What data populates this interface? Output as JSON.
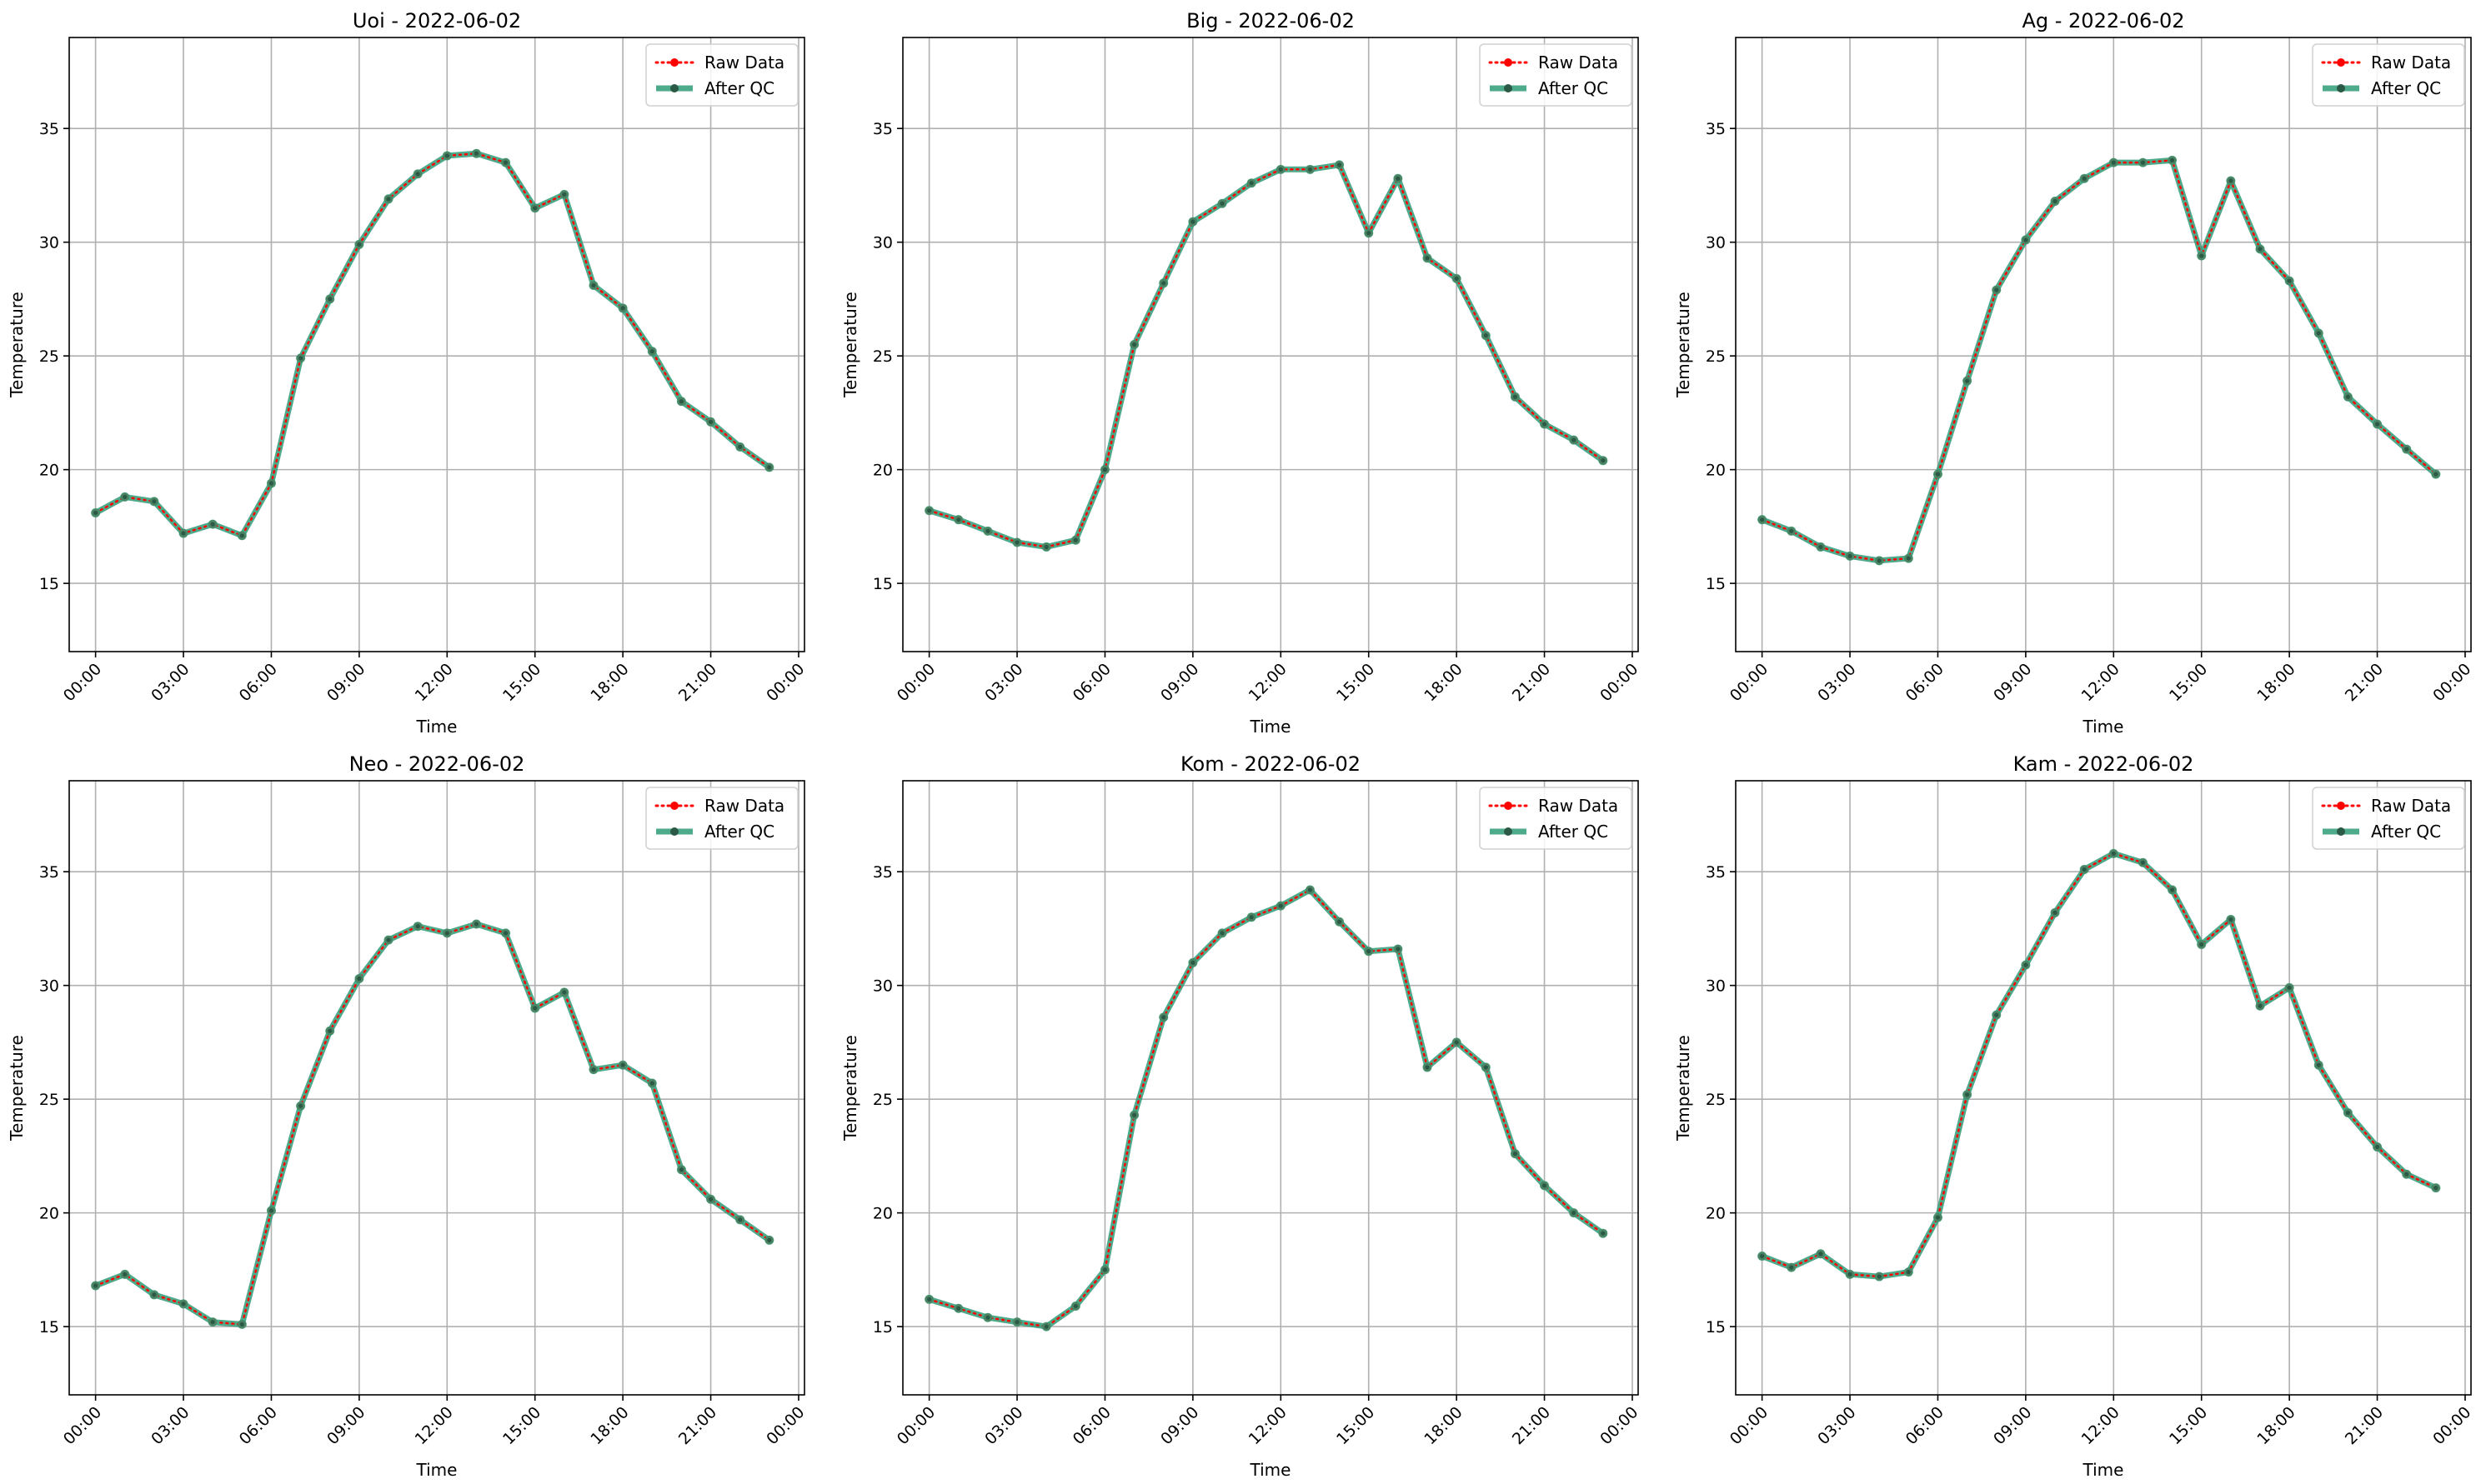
{
  "chart_data": [
    {
      "type": "line",
      "title": "Uoi - 2022-06-02",
      "xlabel": "Time",
      "ylabel": "Temperature",
      "x": [
        "00:00",
        "01:00",
        "02:00",
        "03:00",
        "04:00",
        "05:00",
        "06:00",
        "07:00",
        "08:00",
        "09:00",
        "10:00",
        "11:00",
        "12:00",
        "13:00",
        "14:00",
        "15:00",
        "16:00",
        "17:00",
        "18:00",
        "19:00",
        "20:00",
        "21:00",
        "22:00",
        "23:00"
      ],
      "xticks": [
        "00:00",
        "03:00",
        "06:00",
        "09:00",
        "12:00",
        "15:00",
        "18:00",
        "21:00",
        "00:00"
      ],
      "yticks": [
        15,
        20,
        25,
        30,
        35
      ],
      "ylim": [
        12,
        39
      ],
      "xlim_hours": [
        -0.9,
        24.2
      ],
      "grid": true,
      "legend_position": "upper right",
      "series": [
        {
          "name": "Raw Data",
          "color": "#ff0000",
          "style": "dotted",
          "values": [
            18.1,
            18.8,
            18.6,
            17.2,
            17.6,
            17.1,
            19.4,
            24.9,
            27.5,
            29.9,
            31.9,
            33.0,
            33.8,
            33.9,
            33.5,
            31.5,
            32.1,
            28.1,
            27.1,
            25.2,
            23.0,
            22.1,
            21.0,
            20.1
          ]
        },
        {
          "name": "After QC",
          "color": "#2e9b76",
          "style": "solid",
          "values": [
            18.1,
            18.8,
            18.6,
            17.2,
            17.6,
            17.1,
            19.4,
            24.9,
            27.5,
            29.9,
            31.9,
            33.0,
            33.8,
            33.9,
            33.5,
            31.5,
            32.1,
            28.1,
            27.1,
            25.2,
            23.0,
            22.1,
            21.0,
            20.1
          ]
        }
      ]
    },
    {
      "type": "line",
      "title": "Big - 2022-06-02",
      "xlabel": "Time",
      "ylabel": "Temperature",
      "x": [
        "00:00",
        "01:00",
        "02:00",
        "03:00",
        "04:00",
        "05:00",
        "06:00",
        "07:00",
        "08:00",
        "09:00",
        "10:00",
        "11:00",
        "12:00",
        "13:00",
        "14:00",
        "15:00",
        "16:00",
        "17:00",
        "18:00",
        "19:00",
        "20:00",
        "21:00",
        "22:00",
        "23:00"
      ],
      "xticks": [
        "00:00",
        "03:00",
        "06:00",
        "09:00",
        "12:00",
        "15:00",
        "18:00",
        "21:00",
        "00:00"
      ],
      "yticks": [
        15,
        20,
        25,
        30,
        35
      ],
      "ylim": [
        12,
        39
      ],
      "xlim_hours": [
        -0.9,
        24.2
      ],
      "grid": true,
      "legend_position": "upper right",
      "series": [
        {
          "name": "Raw Data",
          "color": "#ff0000",
          "style": "dotted",
          "values": [
            18.2,
            17.8,
            17.3,
            16.8,
            16.6,
            16.9,
            20.0,
            25.5,
            28.2,
            30.9,
            31.7,
            32.6,
            33.2,
            33.2,
            33.4,
            30.4,
            32.8,
            29.3,
            28.4,
            25.9,
            23.2,
            22.0,
            21.3,
            20.4
          ]
        },
        {
          "name": "After QC",
          "color": "#2e9b76",
          "style": "solid",
          "values": [
            18.2,
            17.8,
            17.3,
            16.8,
            16.6,
            16.9,
            20.0,
            25.5,
            28.2,
            30.9,
            31.7,
            32.6,
            33.2,
            33.2,
            33.4,
            30.4,
            32.8,
            29.3,
            28.4,
            25.9,
            23.2,
            22.0,
            21.3,
            20.4
          ]
        }
      ]
    },
    {
      "type": "line",
      "title": "Ag - 2022-06-02",
      "xlabel": "Time",
      "ylabel": "Temperature",
      "x": [
        "00:00",
        "01:00",
        "02:00",
        "03:00",
        "04:00",
        "05:00",
        "06:00",
        "07:00",
        "08:00",
        "09:00",
        "10:00",
        "11:00",
        "12:00",
        "13:00",
        "14:00",
        "15:00",
        "16:00",
        "17:00",
        "18:00",
        "19:00",
        "20:00",
        "21:00",
        "22:00",
        "23:00"
      ],
      "xticks": [
        "00:00",
        "03:00",
        "06:00",
        "09:00",
        "12:00",
        "15:00",
        "18:00",
        "21:00",
        "00:00"
      ],
      "yticks": [
        15,
        20,
        25,
        30,
        35
      ],
      "ylim": [
        12,
        39
      ],
      "xlim_hours": [
        -0.9,
        24.2
      ],
      "grid": true,
      "legend_position": "upper right",
      "series": [
        {
          "name": "Raw Data",
          "color": "#ff0000",
          "style": "dotted",
          "values": [
            17.8,
            17.3,
            16.6,
            16.2,
            16.0,
            16.1,
            19.8,
            23.9,
            27.9,
            30.1,
            31.8,
            32.8,
            33.5,
            33.5,
            33.6,
            29.4,
            32.7,
            29.7,
            28.3,
            26.0,
            23.2,
            22.0,
            20.9,
            19.8
          ]
        },
        {
          "name": "After QC",
          "color": "#2e9b76",
          "style": "solid",
          "values": [
            17.8,
            17.3,
            16.6,
            16.2,
            16.0,
            16.1,
            19.8,
            23.9,
            27.9,
            30.1,
            31.8,
            32.8,
            33.5,
            33.5,
            33.6,
            29.4,
            32.7,
            29.7,
            28.3,
            26.0,
            23.2,
            22.0,
            20.9,
            19.8
          ]
        }
      ]
    },
    {
      "type": "line",
      "title": "Neo - 2022-06-02",
      "xlabel": "Time",
      "ylabel": "Temperature",
      "x": [
        "00:00",
        "01:00",
        "02:00",
        "03:00",
        "04:00",
        "05:00",
        "06:00",
        "07:00",
        "08:00",
        "09:00",
        "10:00",
        "11:00",
        "12:00",
        "13:00",
        "14:00",
        "15:00",
        "16:00",
        "17:00",
        "18:00",
        "19:00",
        "20:00",
        "21:00",
        "22:00",
        "23:00"
      ],
      "xticks": [
        "00:00",
        "03:00",
        "06:00",
        "09:00",
        "12:00",
        "15:00",
        "18:00",
        "21:00",
        "00:00"
      ],
      "yticks": [
        15,
        20,
        25,
        30,
        35
      ],
      "ylim": [
        12,
        39
      ],
      "xlim_hours": [
        -0.9,
        24.2
      ],
      "grid": true,
      "legend_position": "upper right",
      "series": [
        {
          "name": "Raw Data",
          "color": "#ff0000",
          "style": "dotted",
          "values": [
            16.8,
            17.3,
            16.4,
            16.0,
            15.2,
            15.1,
            20.1,
            24.7,
            28.0,
            30.3,
            32.0,
            32.6,
            32.3,
            32.7,
            32.3,
            29.0,
            29.7,
            26.3,
            26.5,
            25.7,
            21.9,
            20.6,
            19.7,
            18.8
          ]
        },
        {
          "name": "After QC",
          "color": "#2e9b76",
          "style": "solid",
          "values": [
            16.8,
            17.3,
            16.4,
            16.0,
            15.2,
            15.1,
            20.1,
            24.7,
            28.0,
            30.3,
            32.0,
            32.6,
            32.3,
            32.7,
            32.3,
            29.0,
            29.7,
            26.3,
            26.5,
            25.7,
            21.9,
            20.6,
            19.7,
            18.8
          ]
        }
      ]
    },
    {
      "type": "line",
      "title": "Kom - 2022-06-02",
      "xlabel": "Time",
      "ylabel": "Temperature",
      "x": [
        "00:00",
        "01:00",
        "02:00",
        "03:00",
        "04:00",
        "05:00",
        "06:00",
        "07:00",
        "08:00",
        "09:00",
        "10:00",
        "11:00",
        "12:00",
        "13:00",
        "14:00",
        "15:00",
        "16:00",
        "17:00",
        "18:00",
        "19:00",
        "20:00",
        "21:00",
        "22:00",
        "23:00"
      ],
      "xticks": [
        "00:00",
        "03:00",
        "06:00",
        "09:00",
        "12:00",
        "15:00",
        "18:00",
        "21:00",
        "00:00"
      ],
      "yticks": [
        15,
        20,
        25,
        30,
        35
      ],
      "ylim": [
        12,
        39
      ],
      "xlim_hours": [
        -0.9,
        24.2
      ],
      "grid": true,
      "legend_position": "upper right",
      "series": [
        {
          "name": "Raw Data",
          "color": "#ff0000",
          "style": "dotted",
          "values": [
            16.2,
            15.8,
            15.4,
            15.2,
            15.0,
            15.9,
            17.5,
            24.3,
            28.6,
            31.0,
            32.3,
            33.0,
            33.5,
            34.2,
            32.8,
            31.5,
            31.6,
            26.4,
            27.5,
            26.4,
            22.6,
            21.2,
            20.0,
            19.1
          ]
        },
        {
          "name": "After QC",
          "color": "#2e9b76",
          "style": "solid",
          "values": [
            16.2,
            15.8,
            15.4,
            15.2,
            15.0,
            15.9,
            17.5,
            24.3,
            28.6,
            31.0,
            32.3,
            33.0,
            33.5,
            34.2,
            32.8,
            31.5,
            31.6,
            26.4,
            27.5,
            26.4,
            22.6,
            21.2,
            20.0,
            19.1
          ]
        }
      ]
    },
    {
      "type": "line",
      "title": "Kam - 2022-06-02",
      "xlabel": "Time",
      "ylabel": "Temperature",
      "x": [
        "00:00",
        "01:00",
        "02:00",
        "03:00",
        "04:00",
        "05:00",
        "06:00",
        "07:00",
        "08:00",
        "09:00",
        "10:00",
        "11:00",
        "12:00",
        "13:00",
        "14:00",
        "15:00",
        "16:00",
        "17:00",
        "18:00",
        "19:00",
        "20:00",
        "21:00",
        "22:00",
        "23:00"
      ],
      "xticks": [
        "00:00",
        "03:00",
        "06:00",
        "09:00",
        "12:00",
        "15:00",
        "18:00",
        "21:00",
        "00:00"
      ],
      "yticks": [
        15,
        20,
        25,
        30,
        35
      ],
      "ylim": [
        12,
        39
      ],
      "xlim_hours": [
        -0.9,
        24.2
      ],
      "grid": true,
      "legend_position": "upper right",
      "series": [
        {
          "name": "Raw Data",
          "color": "#ff0000",
          "style": "dotted",
          "values": [
            18.1,
            17.6,
            18.2,
            17.3,
            17.2,
            17.4,
            19.8,
            25.2,
            28.7,
            30.9,
            33.2,
            35.1,
            35.8,
            35.4,
            34.2,
            31.8,
            32.9,
            29.1,
            29.9,
            26.5,
            24.4,
            22.9,
            21.7,
            21.1
          ]
        },
        {
          "name": "After QC",
          "color": "#2e9b76",
          "style": "solid",
          "values": [
            18.1,
            17.6,
            18.2,
            17.3,
            17.2,
            17.4,
            19.8,
            25.2,
            28.7,
            30.9,
            33.2,
            35.1,
            35.8,
            35.4,
            34.2,
            31.8,
            32.9,
            29.1,
            29.9,
            26.5,
            24.4,
            22.9,
            21.7,
            21.1
          ]
        }
      ]
    }
  ]
}
